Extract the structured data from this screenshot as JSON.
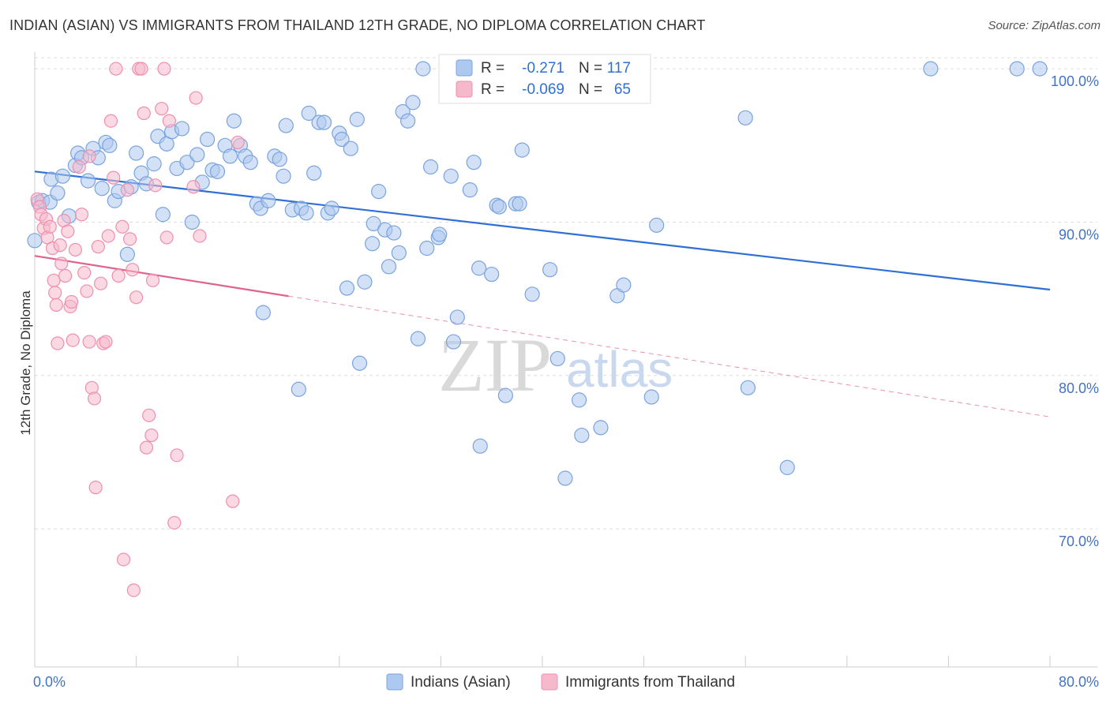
{
  "title": "INDIAN (ASIAN) VS IMMIGRANTS FROM THAILAND 12TH GRADE, NO DIPLOMA CORRELATION CHART",
  "source": "Source: ZipAtlas.com",
  "watermark": {
    "zip": "ZIP",
    "atlas": "atlas"
  },
  "colors": {
    "blue_fill": "#aec9ef",
    "blue_stroke": "#7aa3de",
    "blue_line": "#2f6fd6",
    "pink_fill": "#f6b9cc",
    "pink_stroke": "#ee8fae",
    "pink_line": "#e0628f",
    "grid": "#dddddd",
    "tick_text": "#4472c4"
  },
  "legend_top": {
    "rows": [
      {
        "r_label": "R =",
        "r_value": "-0.271",
        "n_label": "N =",
        "n_value": "117"
      },
      {
        "r_label": "R =",
        "r_value": "-0.069",
        "n_label": "N =",
        "n_value": "65"
      }
    ]
  },
  "legend_bottom": [
    {
      "label": "Indians (Asian)"
    },
    {
      "label": "Immigrants from Thailand"
    }
  ],
  "chart_data": {
    "type": "scatter",
    "title": "INDIAN (ASIAN) VS IMMIGRANTS FROM THAILAND 12TH GRADE, NO DIPLOMA CORRELATION CHART",
    "xlabel": "",
    "ylabel": "12th Grade, No Diploma",
    "xlim": [
      0,
      80
    ],
    "ylim": [
      61,
      101.5
    ],
    "x_tick_labels": [
      "0.0%",
      "80.0%"
    ],
    "y_ticks": [
      70,
      80,
      90,
      100
    ],
    "y_tick_labels": [
      "70.0%",
      "80.0%",
      "90.0%",
      "100.0%"
    ],
    "grid": true,
    "legend_position": "top-center",
    "series": [
      {
        "name": "Indians (Asian)",
        "color": "blue",
        "r": -0.271,
        "n": 117,
        "trend": {
          "x": [
            0,
            80
          ],
          "y": [
            93.3,
            85.6
          ]
        },
        "points": [
          [
            0.0,
            88.8
          ],
          [
            0.3,
            91.3
          ],
          [
            0.6,
            91.4
          ],
          [
            1.2,
            91.3
          ],
          [
            1.3,
            92.8
          ],
          [
            1.8,
            91.9
          ],
          [
            2.2,
            93.0
          ],
          [
            2.7,
            90.4
          ],
          [
            3.2,
            93.7
          ],
          [
            3.4,
            94.5
          ],
          [
            3.7,
            94.2
          ],
          [
            4.2,
            92.7
          ],
          [
            4.6,
            94.8
          ],
          [
            5.0,
            94.2
          ],
          [
            5.3,
            92.2
          ],
          [
            5.6,
            95.2
          ],
          [
            5.9,
            95.0
          ],
          [
            6.3,
            91.4
          ],
          [
            6.6,
            92.0
          ],
          [
            7.3,
            87.9
          ],
          [
            7.6,
            92.3
          ],
          [
            8.0,
            94.5
          ],
          [
            8.4,
            93.2
          ],
          [
            8.8,
            92.5
          ],
          [
            9.4,
            93.8
          ],
          [
            9.7,
            95.6
          ],
          [
            10.1,
            90.5
          ],
          [
            10.4,
            95.1
          ],
          [
            10.8,
            95.9
          ],
          [
            11.2,
            93.5
          ],
          [
            11.6,
            96.1
          ],
          [
            12.0,
            93.9
          ],
          [
            12.4,
            90.0
          ],
          [
            12.8,
            94.4
          ],
          [
            13.2,
            92.6
          ],
          [
            13.6,
            95.4
          ],
          [
            14.0,
            93.4
          ],
          [
            14.4,
            93.3
          ],
          [
            15.0,
            95.0
          ],
          [
            15.4,
            94.3
          ],
          [
            15.7,
            96.6
          ],
          [
            16.2,
            95.0
          ],
          [
            16.6,
            94.3
          ],
          [
            17.0,
            93.9
          ],
          [
            17.5,
            91.2
          ],
          [
            17.8,
            90.9
          ],
          [
            18.0,
            84.1
          ],
          [
            18.4,
            91.4
          ],
          [
            18.9,
            94.3
          ],
          [
            19.3,
            94.1
          ],
          [
            19.6,
            93.0
          ],
          [
            19.8,
            96.3
          ],
          [
            20.3,
            90.8
          ],
          [
            20.8,
            79.1
          ],
          [
            21.0,
            90.9
          ],
          [
            21.4,
            90.6
          ],
          [
            21.6,
            97.1
          ],
          [
            22.0,
            93.2
          ],
          [
            22.4,
            96.5
          ],
          [
            22.8,
            96.5
          ],
          [
            23.1,
            90.6
          ],
          [
            23.4,
            90.9
          ],
          [
            24.0,
            95.8
          ],
          [
            24.2,
            95.4
          ],
          [
            24.6,
            85.7
          ],
          [
            24.9,
            94.8
          ],
          [
            25.4,
            96.7
          ],
          [
            25.6,
            80.8
          ],
          [
            26.0,
            86.1
          ],
          [
            26.6,
            88.6
          ],
          [
            26.7,
            89.9
          ],
          [
            27.1,
            92.0
          ],
          [
            27.6,
            89.5
          ],
          [
            27.9,
            87.1
          ],
          [
            28.3,
            89.3
          ],
          [
            28.7,
            88.0
          ],
          [
            29.0,
            97.2
          ],
          [
            29.4,
            96.6
          ],
          [
            29.8,
            97.8
          ],
          [
            30.2,
            82.4
          ],
          [
            30.6,
            100.0
          ],
          [
            30.9,
            88.3
          ],
          [
            31.2,
            93.6
          ],
          [
            31.8,
            89.0
          ],
          [
            31.9,
            89.2
          ],
          [
            32.8,
            93.0
          ],
          [
            33.0,
            82.2
          ],
          [
            33.3,
            83.8
          ],
          [
            34.3,
            92.1
          ],
          [
            34.6,
            93.9
          ],
          [
            35.0,
            87.0
          ],
          [
            35.1,
            75.4
          ],
          [
            36.0,
            86.6
          ],
          [
            36.4,
            91.1
          ],
          [
            36.6,
            91.0
          ],
          [
            37.1,
            78.7
          ],
          [
            37.9,
            91.2
          ],
          [
            38.2,
            91.2
          ],
          [
            38.4,
            94.7
          ],
          [
            39.2,
            85.3
          ],
          [
            40.6,
            86.9
          ],
          [
            41.2,
            81.1
          ],
          [
            41.8,
            73.3
          ],
          [
            42.9,
            78.4
          ],
          [
            43.1,
            76.1
          ],
          [
            44.6,
            76.6
          ],
          [
            45.9,
            85.2
          ],
          [
            46.0,
            100.0
          ],
          [
            46.4,
            85.9
          ],
          [
            48.6,
            78.6
          ],
          [
            49.0,
            89.8
          ],
          [
            56.0,
            96.8
          ],
          [
            56.2,
            79.2
          ],
          [
            59.3,
            74.0
          ],
          [
            70.6,
            100.0
          ],
          [
            77.4,
            100.0
          ],
          [
            79.2,
            100.0
          ]
        ]
      },
      {
        "name": "Immigrants from Thailand",
        "color": "pink",
        "r": -0.069,
        "n": 65,
        "trend": {
          "x": [
            0,
            80
          ],
          "y": [
            87.8,
            77.3
          ]
        },
        "trend_solid_until_x": 20,
        "points": [
          [
            0.2,
            91.5
          ],
          [
            0.4,
            91.0
          ],
          [
            0.5,
            90.5
          ],
          [
            0.7,
            89.6
          ],
          [
            0.9,
            90.2
          ],
          [
            1.0,
            89.0
          ],
          [
            1.2,
            89.7
          ],
          [
            1.4,
            88.3
          ],
          [
            1.5,
            86.2
          ],
          [
            1.6,
            85.4
          ],
          [
            1.7,
            84.6
          ],
          [
            1.8,
            82.1
          ],
          [
            2.0,
            88.5
          ],
          [
            2.1,
            87.3
          ],
          [
            2.3,
            90.1
          ],
          [
            2.4,
            86.5
          ],
          [
            2.6,
            89.4
          ],
          [
            2.8,
            84.5
          ],
          [
            2.9,
            84.8
          ],
          [
            3.0,
            82.3
          ],
          [
            3.2,
            88.2
          ],
          [
            3.5,
            93.6
          ],
          [
            3.7,
            90.5
          ],
          [
            3.9,
            86.7
          ],
          [
            4.1,
            85.5
          ],
          [
            4.3,
            82.2
          ],
          [
            4.5,
            79.2
          ],
          [
            4.7,
            78.5
          ],
          [
            4.8,
            72.7
          ],
          [
            5.0,
            88.4
          ],
          [
            5.2,
            86.0
          ],
          [
            5.4,
            82.1
          ],
          [
            5.6,
            82.2
          ],
          [
            5.8,
            89.1
          ],
          [
            6.0,
            96.6
          ],
          [
            6.2,
            92.9
          ],
          [
            6.4,
            100.0
          ],
          [
            6.6,
            86.5
          ],
          [
            6.9,
            89.7
          ],
          [
            7.0,
            68.0
          ],
          [
            7.3,
            92.1
          ],
          [
            7.5,
            88.9
          ],
          [
            7.7,
            86.9
          ],
          [
            7.8,
            66.0
          ],
          [
            8.0,
            85.1
          ],
          [
            8.2,
            100.0
          ],
          [
            8.4,
            100.0
          ],
          [
            8.6,
            97.1
          ],
          [
            8.8,
            75.3
          ],
          [
            9.0,
            77.4
          ],
          [
            9.2,
            76.1
          ],
          [
            9.5,
            92.4
          ],
          [
            10.0,
            97.4
          ],
          [
            10.2,
            100.0
          ],
          [
            10.4,
            89.0
          ],
          [
            10.6,
            96.6
          ],
          [
            11.0,
            70.4
          ],
          [
            11.2,
            74.8
          ],
          [
            12.5,
            92.3
          ],
          [
            12.7,
            98.1
          ],
          [
            13.0,
            89.1
          ],
          [
            15.6,
            71.8
          ],
          [
            16.0,
            95.2
          ],
          [
            9.3,
            86.2
          ],
          [
            4.3,
            94.3
          ]
        ]
      }
    ]
  }
}
